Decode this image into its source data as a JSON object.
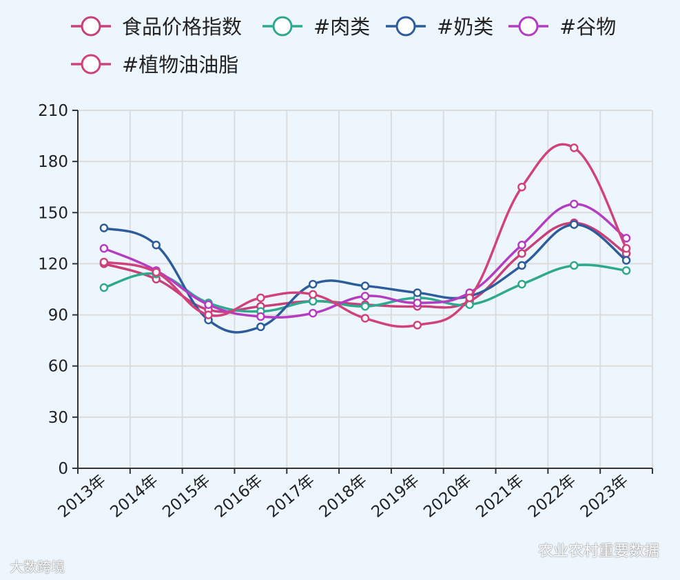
{
  "chart_data": {
    "type": "line",
    "categories": [
      "2013年",
      "2014年",
      "2015年",
      "2016年",
      "2017年",
      "2018年",
      "2019年",
      "2020年",
      "2021年",
      "2022年",
      "2023年"
    ],
    "ylim": [
      0,
      210
    ],
    "yticks": [
      0,
      30,
      60,
      90,
      120,
      150,
      180,
      210
    ],
    "grid": true,
    "legend_position": "top",
    "series": [
      {
        "name": "食品价格指数",
        "color": "#c8407a",
        "values": [
          120,
          111,
          93,
          95,
          98,
          96,
          95,
          98,
          126,
          144,
          126
        ]
      },
      {
        "name": "#肉类",
        "color": "#2ea98e",
        "values": [
          106,
          114,
          97,
          92,
          98,
          95,
          100,
          96,
          108,
          119,
          116
        ]
      },
      {
        "name": "#奶类",
        "color": "#2d5c9c",
        "values": [
          141,
          131,
          87,
          83,
          108,
          107,
          103,
          101,
          119,
          143,
          122
        ]
      },
      {
        "name": "#谷物",
        "color": "#b43cc2",
        "values": [
          129,
          116,
          96,
          89,
          91,
          101,
          97,
          103,
          131,
          155,
          135
        ]
      },
      {
        "name": "#植物油油脂",
        "color": "#d0427c",
        "values": [
          121,
          115,
          90,
          100,
          102,
          88,
          84,
          100,
          165,
          188,
          129
        ]
      }
    ]
  },
  "watermarks": {
    "right": "农业农村重要数据",
    "left": "大数跨境"
  }
}
